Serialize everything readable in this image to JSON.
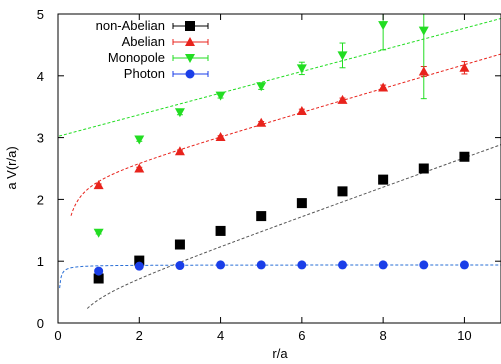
{
  "chart_data": {
    "type": "scatter",
    "xlabel": "r/a",
    "ylabel": "a V(r/a)",
    "xlim": [
      0,
      10.9
    ],
    "ylim": [
      0,
      5
    ],
    "grid": false,
    "legend_position": "top-left",
    "xticks": [
      "0",
      "2",
      "4",
      "6",
      "8",
      "10"
    ],
    "yticks": [
      "0",
      "1",
      "2",
      "3",
      "4",
      "5"
    ],
    "series": [
      {
        "name": "non-Abelian",
        "color": "#000000",
        "marker": "square",
        "x": [
          1,
          2,
          3,
          4,
          5,
          6,
          7,
          8,
          9,
          10
        ],
        "y": [
          0.72,
          1.01,
          1.27,
          1.49,
          1.73,
          1.94,
          2.13,
          2.32,
          2.5,
          2.69
        ],
        "err": [
          0.02,
          0.02,
          0.02,
          0.02,
          0.02,
          0.02,
          0.03,
          0.03,
          0.04,
          0.04
        ],
        "fit": {
          "type": "cornell",
          "A": 0.2,
          "sigma": 0.235,
          "c": 0.343,
          "x_start": 0.72,
          "color": "#555555"
        }
      },
      {
        "name": "Abelian",
        "color": "#e8231c",
        "marker": "triangle-up",
        "x": [
          1,
          2,
          3,
          4,
          5,
          6,
          7,
          8,
          9,
          10
        ],
        "y": [
          2.23,
          2.5,
          2.78,
          3.01,
          3.24,
          3.43,
          3.61,
          3.81,
          4.07,
          4.13
        ],
        "err": [
          0.02,
          0.02,
          0.02,
          0.02,
          0.02,
          0.03,
          0.03,
          0.04,
          0.08,
          0.1
        ],
        "fit": {
          "type": "cornell",
          "A": 0.2,
          "sigma": 0.19,
          "c": 2.3,
          "x_start": 0.32,
          "color": "#e8231c"
        }
      },
      {
        "name": "Monopole",
        "color": "#22dd22",
        "marker": "triangle-down",
        "x": [
          1,
          2,
          3,
          4,
          5,
          6,
          7,
          8,
          9
        ],
        "y": [
          1.46,
          2.97,
          3.41,
          3.68,
          3.83,
          4.12,
          4.33,
          4.82,
          4.73
        ],
        "err": [
          0.02,
          0.03,
          0.04,
          0.04,
          0.05,
          0.1,
          0.2,
          0.4,
          1.1
        ],
        "fit": {
          "type": "linear",
          "slope": 0.175,
          "intercept": 3.02,
          "x_start": 0,
          "color": "#22dd22"
        }
      },
      {
        "name": "Photon",
        "color": "#1a3ee8",
        "marker": "circle",
        "x": [
          1,
          2,
          3,
          4,
          5,
          6,
          7,
          8,
          9,
          10
        ],
        "y": [
          0.84,
          0.92,
          0.93,
          0.94,
          0.94,
          0.94,
          0.94,
          0.94,
          0.94,
          0.94
        ],
        "err": [
          0.01,
          0.01,
          0.01,
          0.01,
          0.01,
          0.01,
          0.01,
          0.01,
          0.01,
          0.01
        ],
        "fit": {
          "type": "cornell",
          "A": 0.015,
          "sigma": 0,
          "c": 0.94,
          "x_start": 0.04,
          "color": "#2a6fd6"
        }
      }
    ]
  }
}
